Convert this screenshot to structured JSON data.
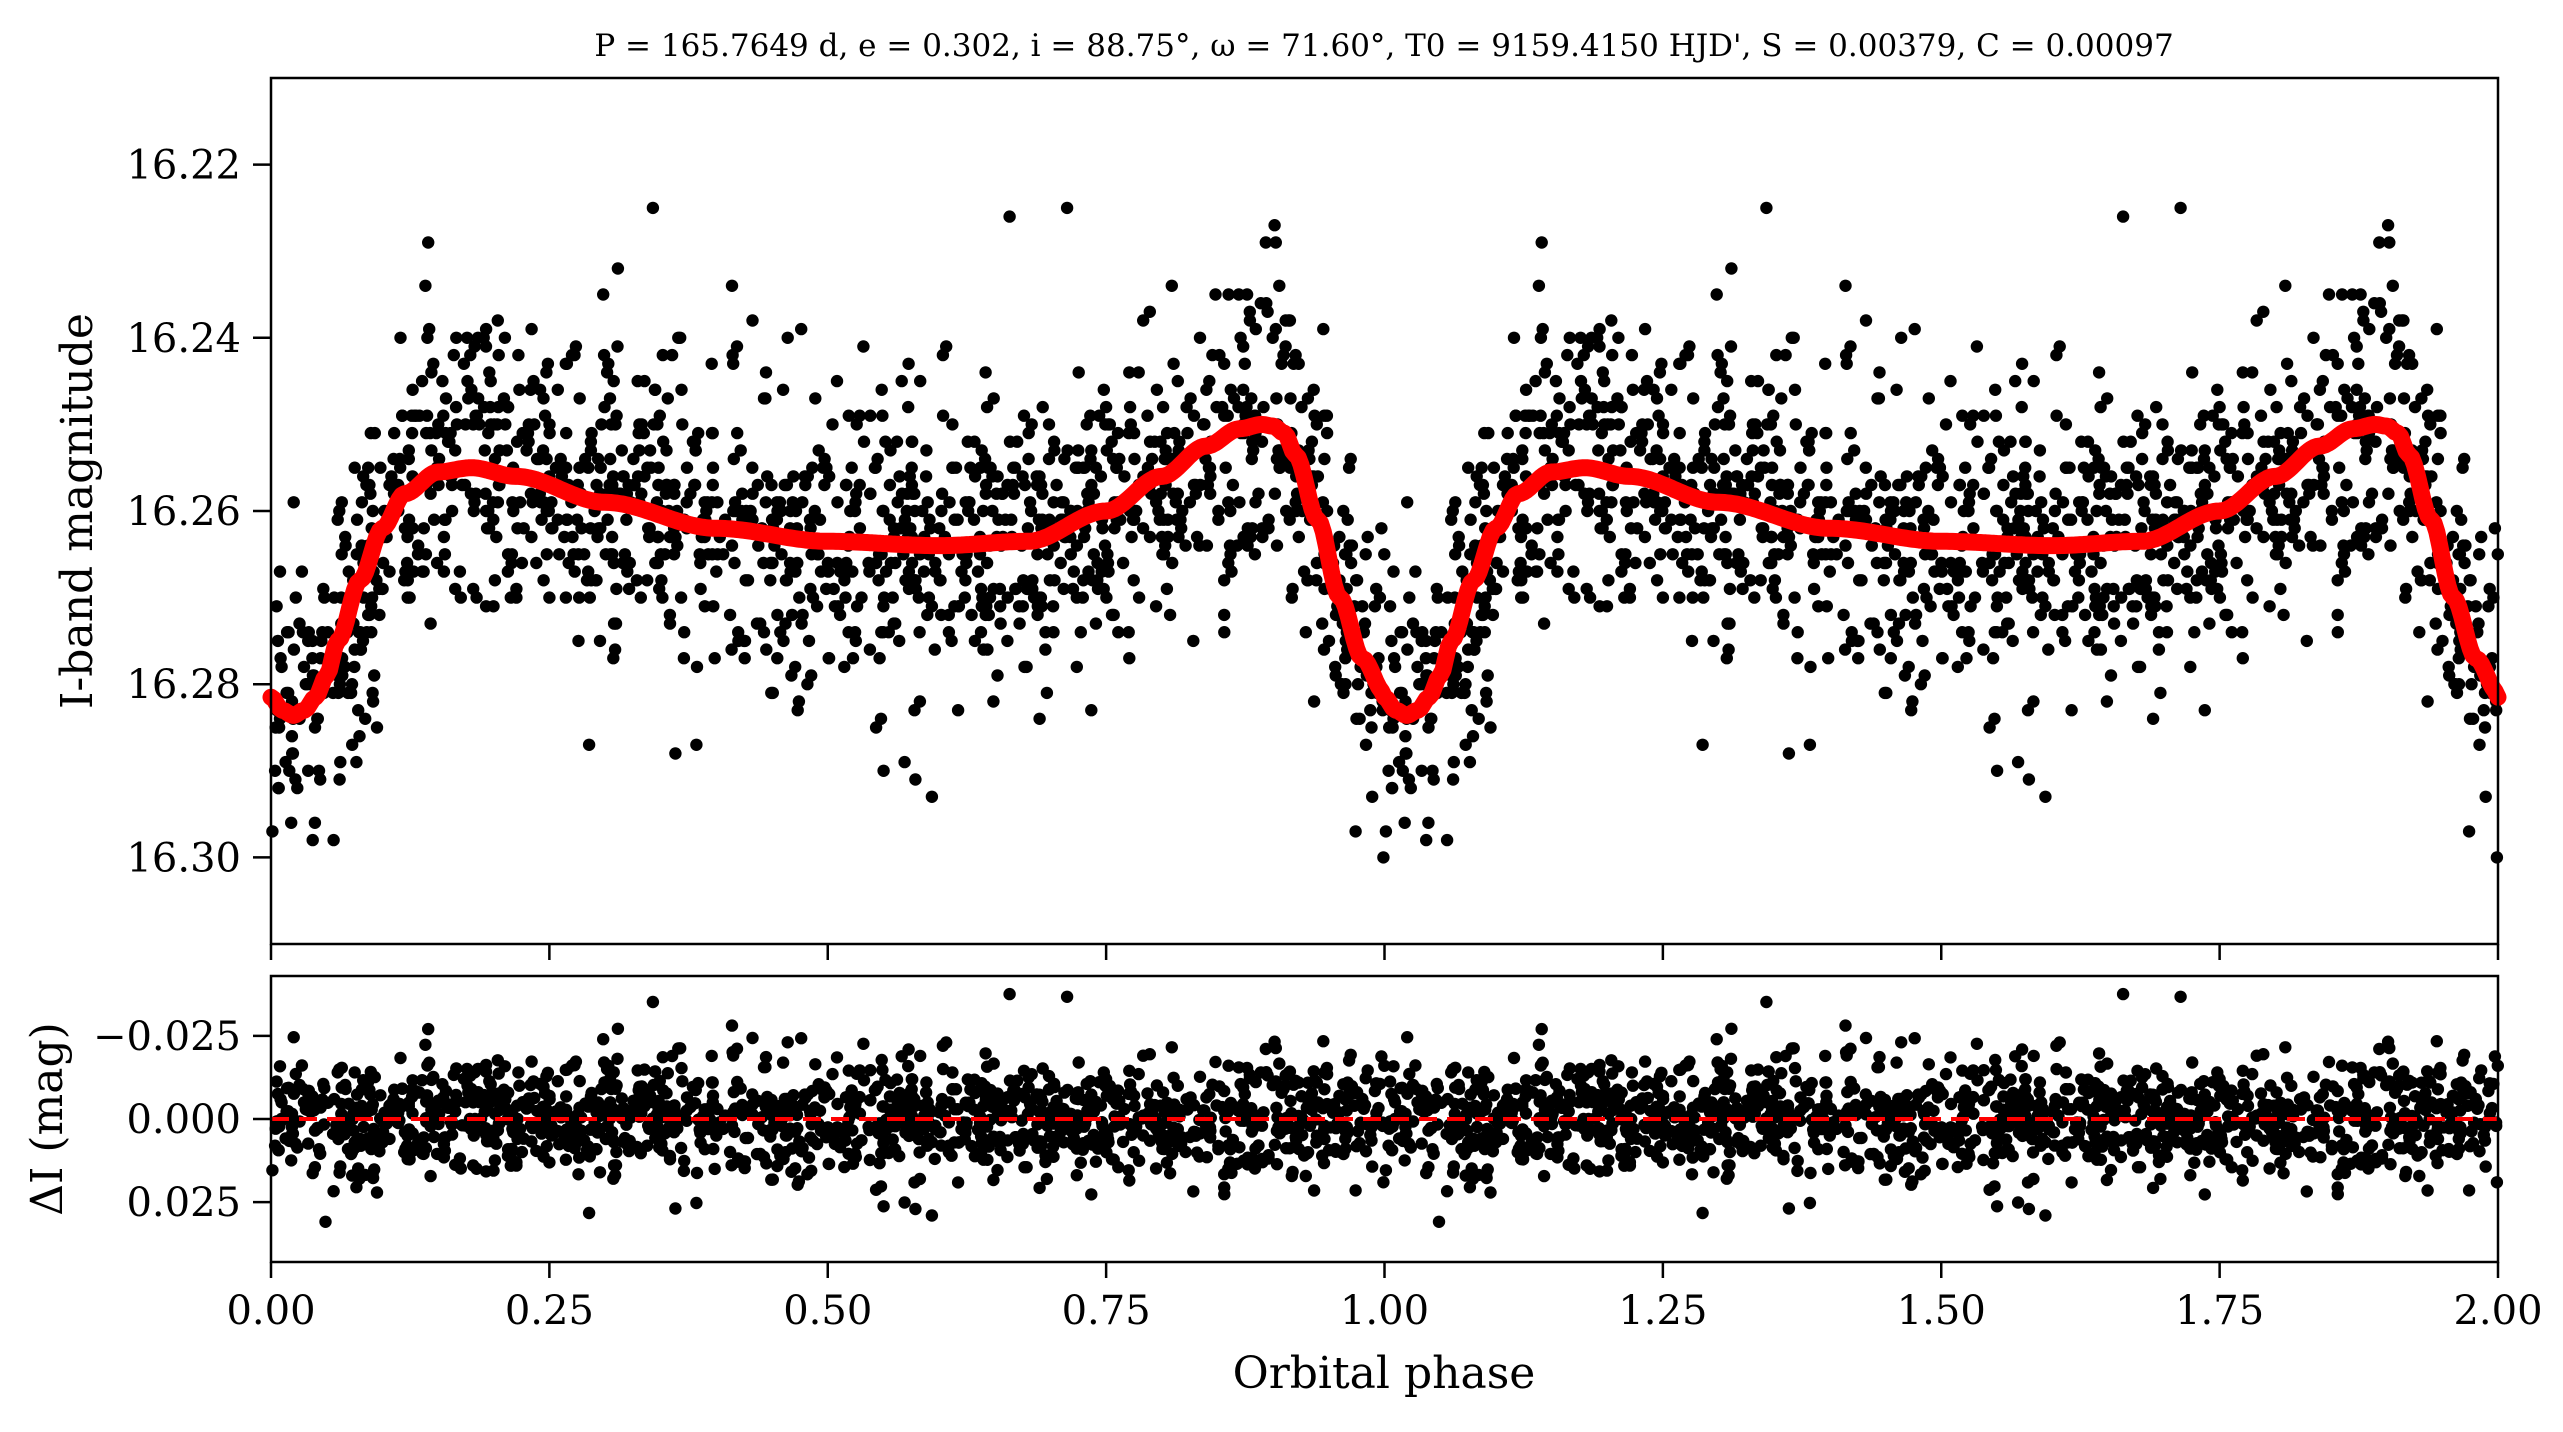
{
  "chart_data": [
    {
      "type": "scatter",
      "panel": "top",
      "title": "P = 165.7649 d, e = 0.302, i = 88.75°, ω = 71.60°, T0 = 9159.4150 HJD', S = 0.00379, C = 0.00097",
      "ylabel": "I-band magnitude",
      "xlabel": "",
      "xlim": [
        0.0,
        2.0
      ],
      "ylim": [
        16.31,
        16.21
      ],
      "y_inverted": true,
      "yticks": [
        16.22,
        16.24,
        16.26,
        16.28,
        16.3
      ],
      "ytick_labels": [
        "16.22",
        "16.24",
        "16.26",
        "16.28",
        "16.30"
      ],
      "xticks": [
        0.0,
        0.25,
        0.5,
        0.75,
        1.0,
        1.25,
        1.5,
        1.75,
        2.0
      ],
      "grid": false,
      "colors": {
        "points": "#000000",
        "model": "#ff0000"
      },
      "series": [
        {
          "kind": "points",
          "mode": "phase-folded, repeated over two cycles",
          "approx_count_per_cycle": 1400,
          "scatter_sigma_mag": 0.009
        },
        {
          "kind": "model-curve",
          "phase": [
            0.0,
            0.01,
            0.02,
            0.03,
            0.04,
            0.05,
            0.06,
            0.08,
            0.1,
            0.12,
            0.15,
            0.18,
            0.22,
            0.3,
            0.4,
            0.5,
            0.6,
            0.68,
            0.75,
            0.8,
            0.84,
            0.87,
            0.89,
            0.9,
            0.91,
            0.92,
            0.94,
            0.96,
            0.98,
            1.0,
            1.02
          ],
          "magnitude": [
            16.2815,
            16.283,
            16.2836,
            16.283,
            16.2815,
            16.279,
            16.275,
            16.268,
            16.262,
            16.258,
            16.2555,
            16.255,
            16.256,
            16.259,
            16.262,
            16.2635,
            16.264,
            16.2635,
            16.26,
            16.256,
            16.2525,
            16.2505,
            16.25,
            16.2502,
            16.251,
            16.2535,
            16.261,
            16.27,
            16.277,
            16.281,
            16.283
          ]
        }
      ]
    },
    {
      "type": "scatter",
      "panel": "bottom",
      "title": "",
      "xlabel": "Orbital phase",
      "ylabel": "ΔI (mag)",
      "xlim": [
        0.0,
        2.0
      ],
      "ylim": [
        0.043,
        -0.043
      ],
      "y_inverted": true,
      "yticks": [
        -0.025,
        0.0,
        0.025
      ],
      "ytick_labels": [
        "−0.025",
        "0.000",
        "0.025"
      ],
      "xticks": [
        0.0,
        0.25,
        0.5,
        0.75,
        1.0,
        1.25,
        1.5,
        1.75,
        2.0
      ],
      "xtick_labels": [
        "0.00",
        "0.25",
        "0.50",
        "0.75",
        "1.00",
        "1.25",
        "1.50",
        "1.75",
        "2.00"
      ],
      "grid": false,
      "colors": {
        "points": "#000000",
        "zero_line": "#ff0000"
      },
      "series": [
        {
          "kind": "points",
          "mode": "residuals, repeated over two cycles",
          "approx_count_per_cycle": 1400,
          "scatter_sigma_mag": 0.009
        },
        {
          "kind": "reference-line",
          "style": "dashed",
          "y": 0.0
        }
      ]
    }
  ]
}
